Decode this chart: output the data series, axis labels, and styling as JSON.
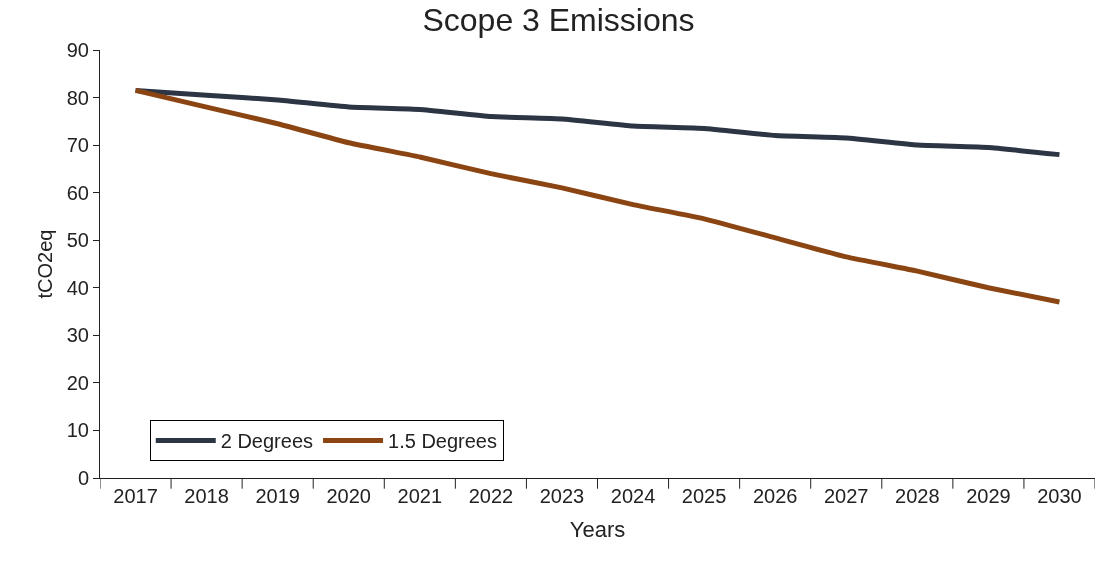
{
  "chart_data": {
    "type": "line",
    "title": "Scope 3 Emissions",
    "xlabel": "Years",
    "ylabel": "tCO2eq",
    "categories": [
      "2017",
      "2018",
      "2019",
      "2020",
      "2021",
      "2022",
      "2023",
      "2024",
      "2025",
      "2026",
      "2027",
      "2028",
      "2029",
      "2030"
    ],
    "series": [
      {
        "name": "2 Degrees",
        "color": "#2b3544",
        "values": [
          81.5,
          80.5,
          79.5,
          78,
          77.5,
          76,
          75.5,
          74,
          73.5,
          72,
          71.5,
          70,
          69.5,
          68
        ]
      },
      {
        "name": "1.5 Degrees",
        "color": "#8b4513",
        "values": [
          81.5,
          78,
          74.5,
          70.5,
          67.5,
          64,
          61,
          57.5,
          54.5,
          50.5,
          46.5,
          43.5,
          40,
          37
        ]
      }
    ],
    "ylim": [
      0,
      90
    ],
    "yticks": [
      0,
      10,
      20,
      30,
      40,
      50,
      60,
      70,
      80,
      90
    ],
    "legend": "bottom left",
    "marker": "none",
    "line_style": "solid"
  }
}
